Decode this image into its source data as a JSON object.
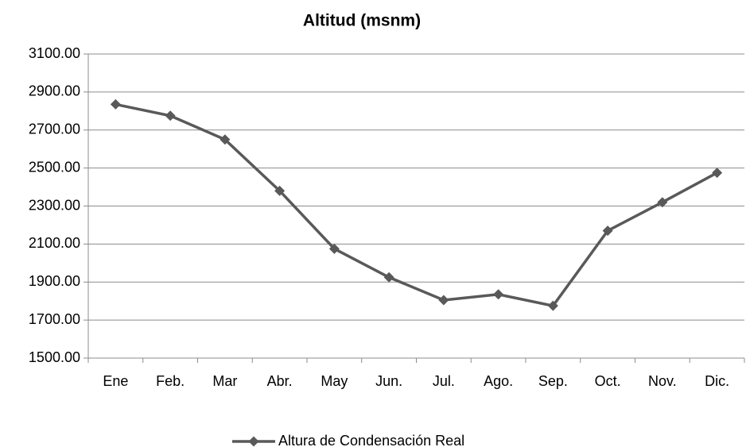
{
  "chart_data": {
    "type": "line",
    "title": "Altitud (msnm)",
    "categories": [
      "Ene",
      "Feb.",
      "Mar",
      "Abr.",
      "May",
      "Jun.",
      "Jul.",
      "Ago.",
      "Sep.",
      "Oct.",
      "Nov.",
      "Dic."
    ],
    "series": [
      {
        "name": "Altura de Condensación Real",
        "color": "#595959",
        "values": [
          2835,
          2775,
          2650,
          2380,
          2075,
          1925,
          1805,
          1835,
          1775,
          2170,
          2320,
          2475
        ]
      }
    ],
    "ylim": [
      1500,
      3100
    ],
    "yticks": [
      {
        "value": 1500,
        "label": "1500.00"
      },
      {
        "value": 1700,
        "label": "1700.00"
      },
      {
        "value": 1900,
        "label": "1900.00"
      },
      {
        "value": 2100,
        "label": "2100.00"
      },
      {
        "value": 2300,
        "label": "2300.00"
      },
      {
        "value": 2500,
        "label": "2500.00"
      },
      {
        "value": 2700,
        "label": "2700.00"
      },
      {
        "value": 2900,
        "label": "2900.00"
      },
      {
        "value": 3100,
        "label": "3100.00"
      }
    ],
    "grid": true,
    "legend": "bottom"
  }
}
